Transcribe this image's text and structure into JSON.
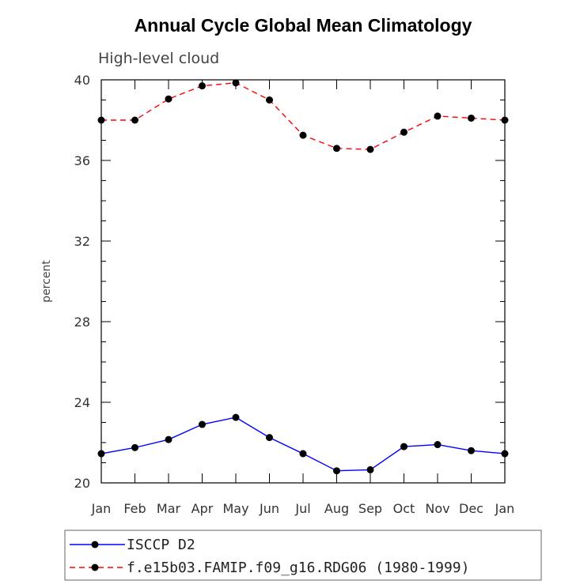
{
  "chart_data": {
    "type": "line",
    "title": "Annual Cycle Global Mean Climatology",
    "subtitle": "High-level cloud",
    "xlabel": "",
    "ylabel": "percent",
    "categories": [
      "Jan",
      "Feb",
      "Mar",
      "Apr",
      "May",
      "Jun",
      "Jul",
      "Aug",
      "Sep",
      "Oct",
      "Nov",
      "Dec",
      "Jan"
    ],
    "ylim": [
      20,
      40
    ],
    "yticks": [
      20,
      24,
      28,
      32,
      36,
      40
    ],
    "ytick_labels": [
      "20",
      "24",
      "28",
      "32",
      "36",
      "40"
    ],
    "grid": false,
    "legend_position": "bottom",
    "series": [
      {
        "name": "ISCCP D2",
        "color": "#0000ff",
        "style": "solid",
        "values": [
          21.45,
          21.75,
          22.15,
          22.9,
          23.25,
          22.25,
          21.45,
          20.6,
          20.65,
          21.8,
          21.9,
          21.6,
          21.45
        ]
      },
      {
        "name": "f.e15b03.FAMIP.f09_g16.RDG06 (1980-1999)",
        "color": "#ff0000",
        "style": "dashed",
        "values": [
          38.0,
          38.0,
          39.05,
          39.7,
          39.85,
          39.0,
          37.25,
          36.6,
          36.55,
          37.4,
          38.2,
          38.1,
          38.0
        ]
      }
    ]
  }
}
